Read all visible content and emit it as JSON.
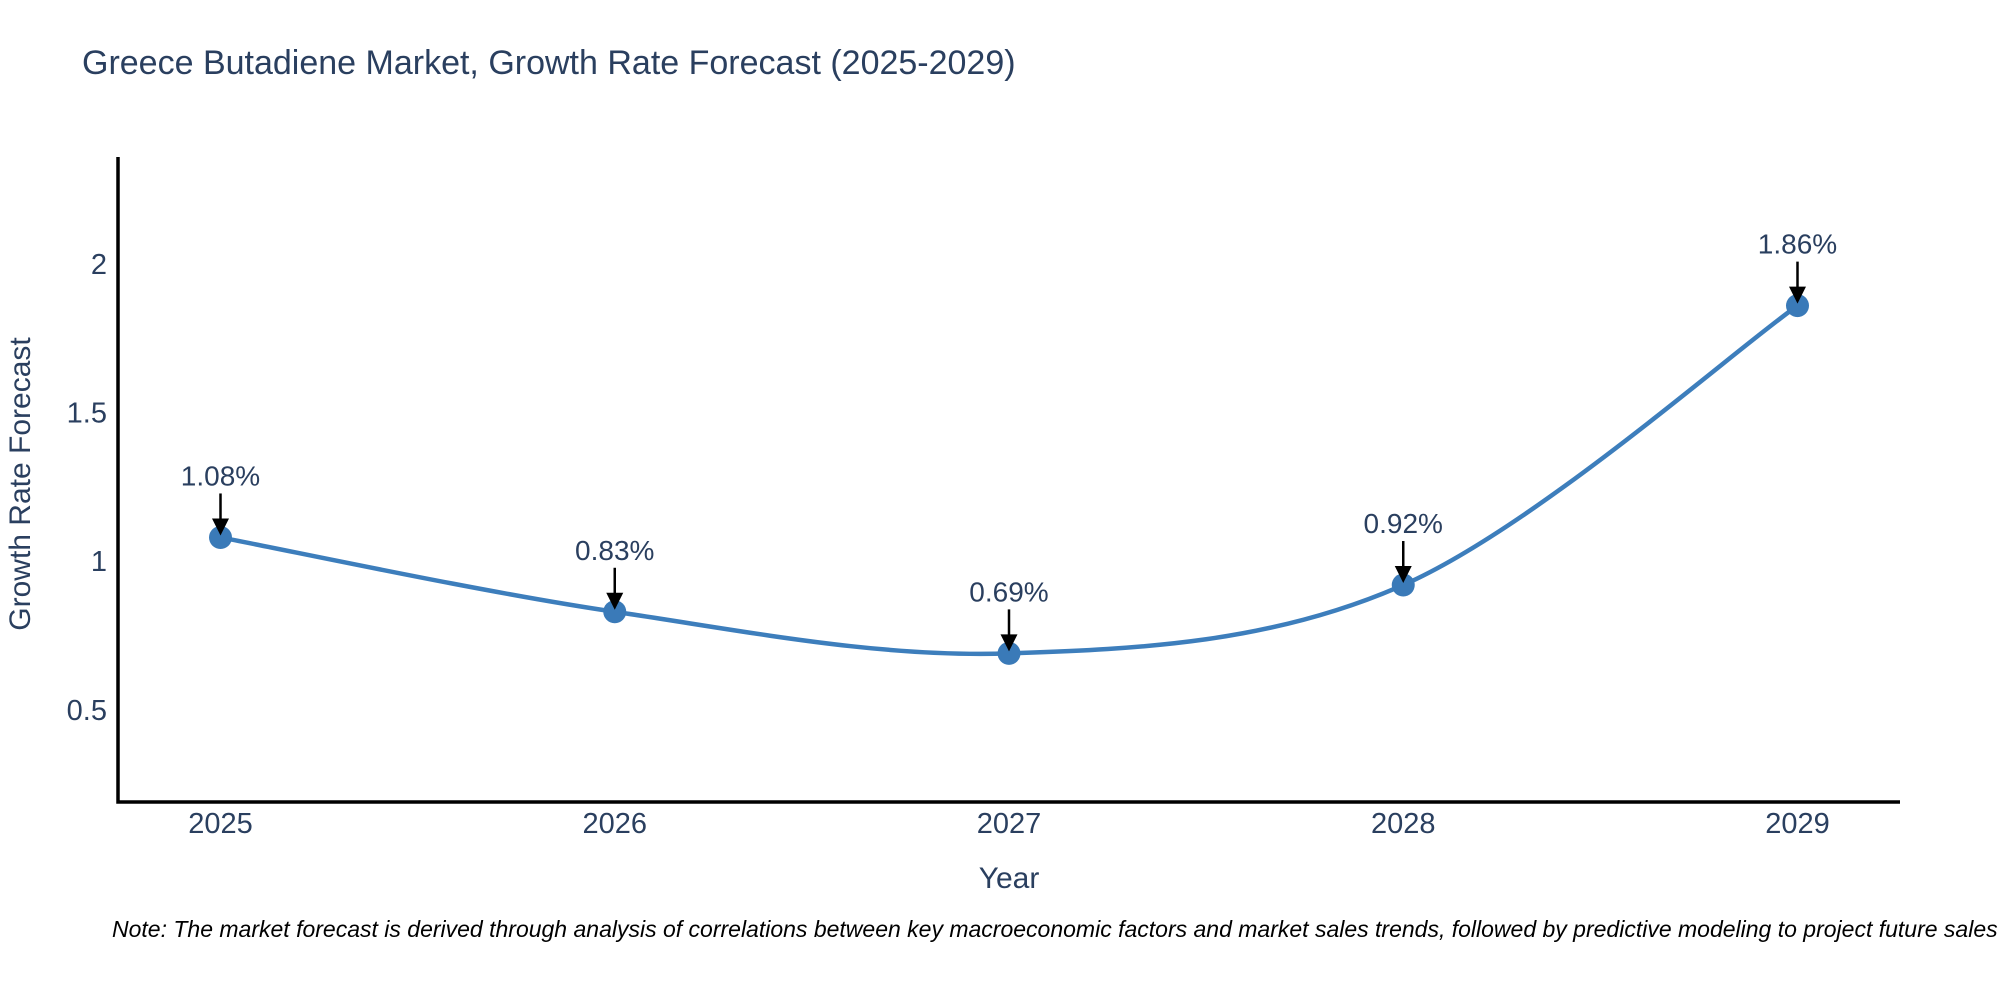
{
  "chart_data": {
    "type": "line",
    "title": "Greece Butadiene Market, Growth Rate Forecast (2025-2029)",
    "x": [
      2025,
      2026,
      2027,
      2028,
      2029
    ],
    "xticklabels": [
      "2025",
      "2026",
      "2027",
      "2028",
      "2029"
    ],
    "series": [
      {
        "name": "Growth Rate Forecast",
        "values": [
          1.08,
          0.83,
          0.69,
          0.92,
          1.86
        ]
      }
    ],
    "point_labels": [
      "1.08%",
      "0.83%",
      "0.69%",
      "0.92%",
      "1.86%"
    ],
    "xlabel": "Year",
    "ylabel": "Growth Rate Forecast",
    "yticks": [
      0.5,
      1,
      1.5,
      2
    ],
    "ytick_labels": [
      "0.5",
      "1",
      "1.5",
      "2"
    ],
    "xlim": [
      2024.74,
      2029.26
    ],
    "ylim": [
      0.19,
      2.36
    ],
    "line_shape": "spline",
    "grid": false,
    "legend_position": "none",
    "colors": {
      "line": "#3d7ebc",
      "marker": "#3a7ab8",
      "axis": "#000000",
      "text": "#2a3f5f",
      "annotation_arrow": "#000000"
    }
  },
  "note": "Note: The market forecast is derived through analysis of correlations between key macroeconomic factors and market sales trends, followed by predictive modeling to project future sales"
}
